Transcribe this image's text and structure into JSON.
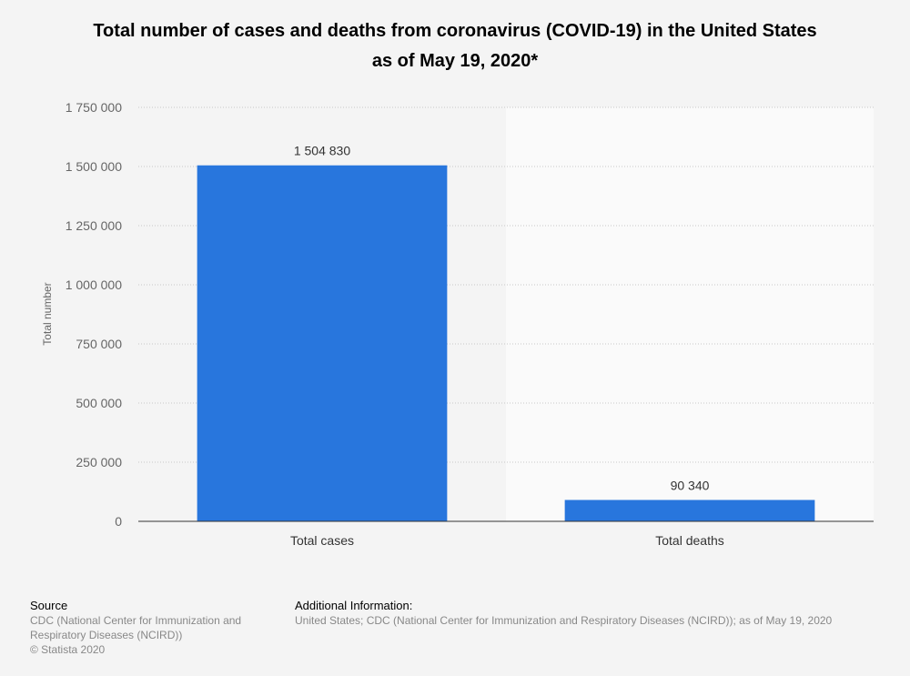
{
  "title_lines": [
    "Total number of cases and deaths from coronavirus (COVID-19) in the United States",
    "as of May 19, 2020*"
  ],
  "chart_data": {
    "type": "bar",
    "categories": [
      "Total cases",
      "Total deaths"
    ],
    "values": [
      1504830,
      90340
    ],
    "value_labels": [
      "1 504 830",
      "90 340"
    ],
    "ylabel": "Total number",
    "xlabel": "",
    "ylim": [
      0,
      1750000
    ],
    "yticks": [
      0,
      250000,
      500000,
      750000,
      1000000,
      1250000,
      1500000,
      1750000
    ],
    "ytick_labels": [
      "0",
      "250 000",
      "500 000",
      "750 000",
      "1 000 000",
      "1 250 000",
      "1 500 000",
      "1 750 000"
    ],
    "grid": true,
    "bar_color": "#2876dd"
  },
  "footer": {
    "source_heading": "Source",
    "source_lines": [
      "CDC (National Center for Immunization and",
      "Respiratory Diseases (NCIRD))",
      "© Statista 2020"
    ],
    "info_heading": "Additional Information:",
    "info_text": "United States; CDC (National Center for Immunization and Respiratory Diseases (NCIRD)); as of May 19, 2020"
  }
}
